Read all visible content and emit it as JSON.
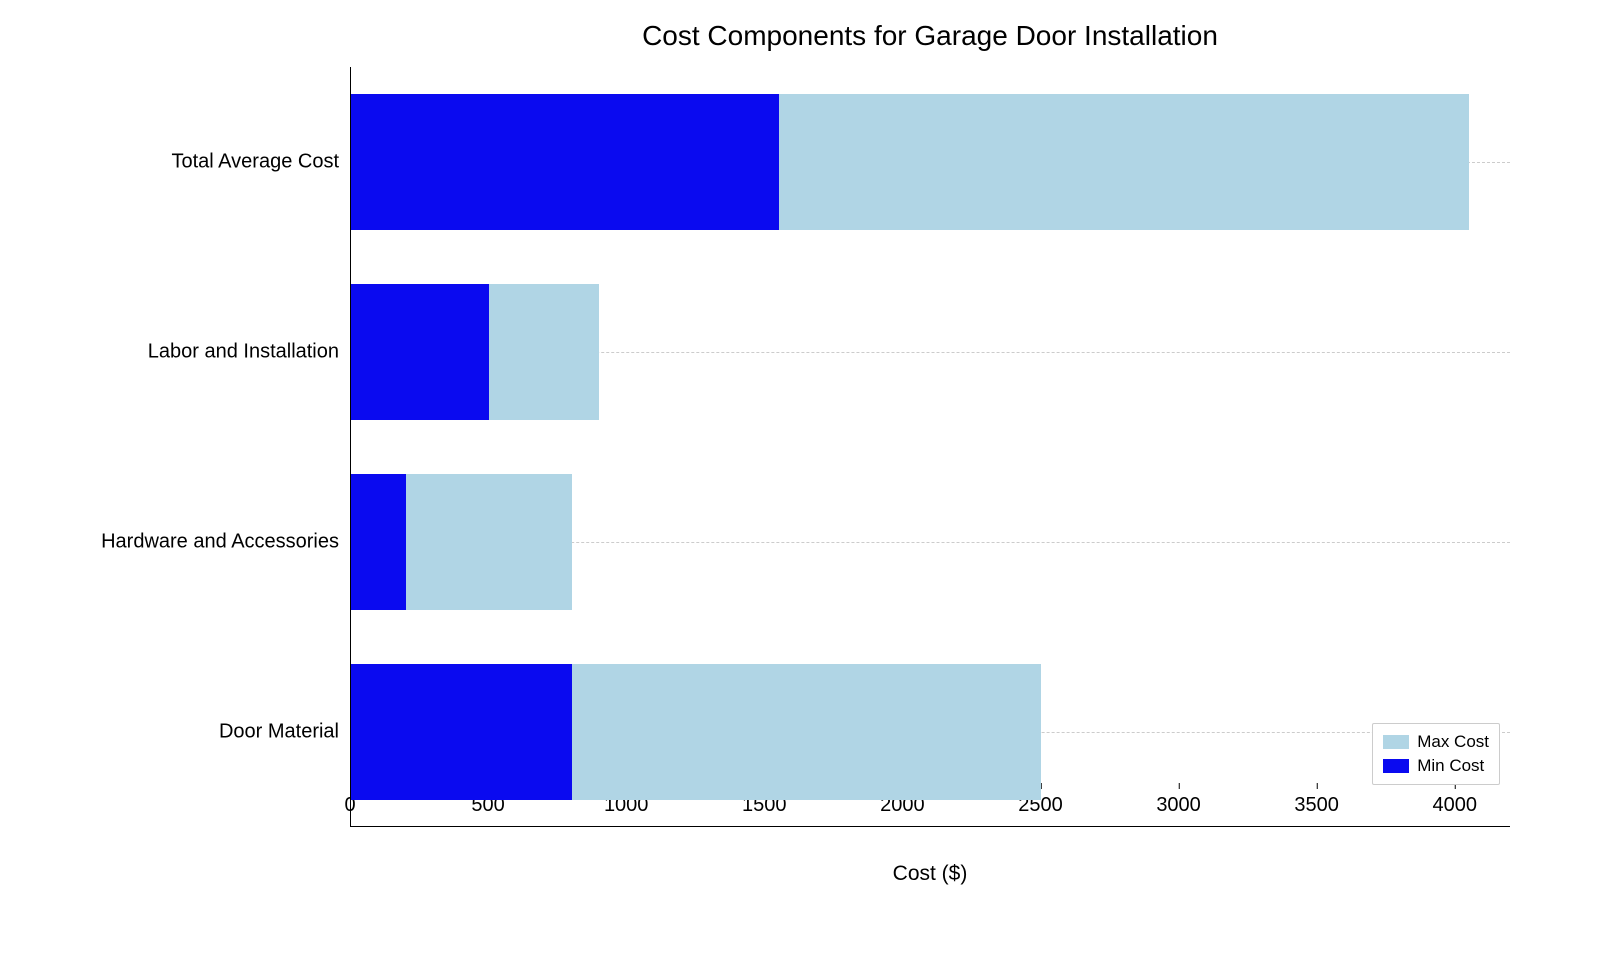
{
  "chart": {
    "type": "bar",
    "orientation": "horizontal",
    "title": "Cost Components for Garage Door Installation",
    "title_fontsize": 28,
    "xlabel": "Cost ($)",
    "label_fontsize": 21,
    "tick_fontsize": 20,
    "xlim": [
      0,
      4200
    ],
    "xtick_step": 500,
    "xticks": [
      0,
      500,
      1000,
      1500,
      2000,
      2500,
      3000,
      3500,
      4000
    ],
    "background_color": "#ffffff",
    "grid_color": "#cccccc",
    "grid_style": "dashed",
    "axis_color": "#000000",
    "bar_height": 0.72,
    "categories": [
      {
        "label": "Door Material",
        "min": 800,
        "max": 2500
      },
      {
        "label": "Hardware and Accessories",
        "min": 200,
        "max": 800
      },
      {
        "label": "Labor and Installation",
        "min": 500,
        "max": 900
      },
      {
        "label": "Total Average Cost",
        "min": 1550,
        "max": 4050
      }
    ],
    "colors": {
      "min": "#0a0af0",
      "max": "#b0d5e5"
    },
    "legend": {
      "position": "lower right",
      "items": [
        {
          "label": "Max Cost",
          "color": "#b0d5e5"
        },
        {
          "label": "Min Cost",
          "color": "#0a0af0"
        }
      ]
    }
  }
}
